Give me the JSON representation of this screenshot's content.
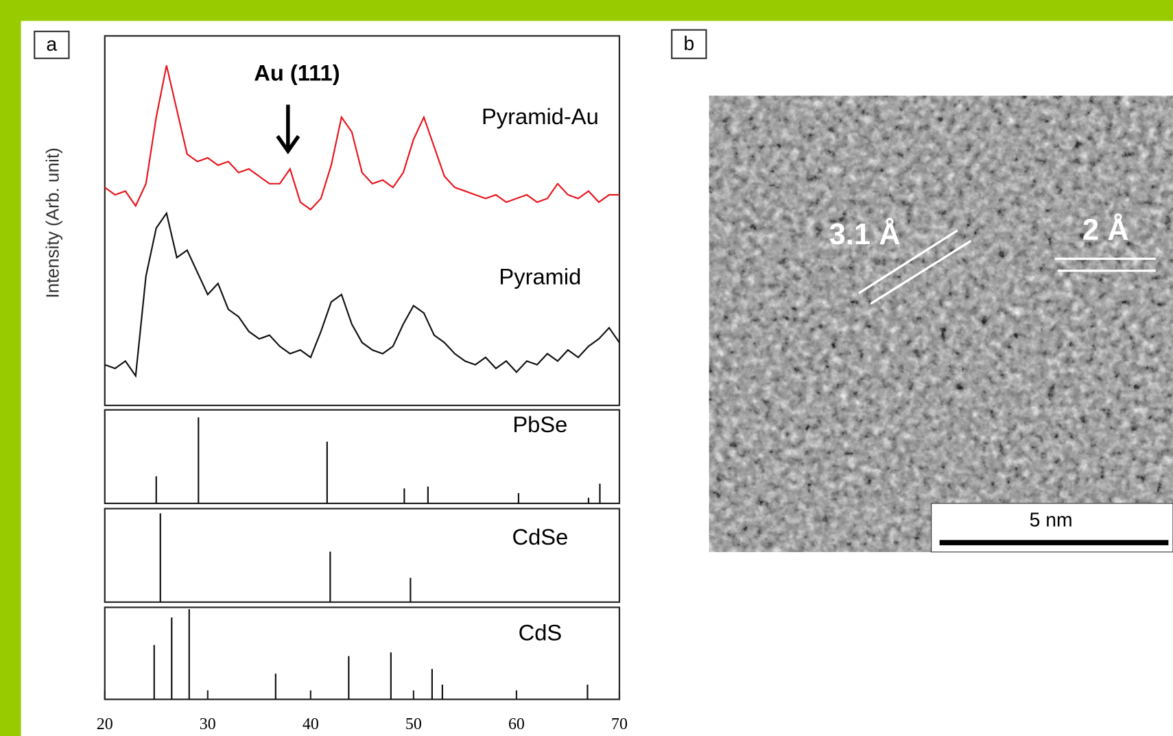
{
  "chart_data": [
    {
      "type": "line",
      "panel_label": "a",
      "ylabel": "Intensity (Arb. unit)",
      "annotation": {
        "text": "Au (111)",
        "x": 37.8
      },
      "x": [
        20,
        21,
        22,
        23,
        24,
        25,
        26,
        27,
        28,
        29,
        30,
        31,
        32,
        33,
        34,
        35,
        36,
        37,
        38,
        39,
        40,
        41,
        42,
        43,
        44,
        45,
        46,
        47,
        48,
        49,
        50,
        51,
        52,
        53,
        54,
        55,
        56,
        57,
        58,
        59,
        60,
        61,
        62,
        63,
        64,
        65,
        66,
        67,
        68,
        69,
        70
      ],
      "xlim": [
        20,
        70
      ],
      "ylim": [
        0,
        100
      ],
      "series": [
        {
          "name": "Pyramid-Au",
          "color": "#e8141c",
          "values": [
            59,
            57,
            58,
            54,
            60,
            78,
            92,
            80,
            68,
            66,
            67,
            65,
            66,
            63,
            64,
            62,
            60,
            60,
            64,
            55,
            53,
            56,
            65,
            78,
            74,
            63,
            60,
            61,
            59,
            63,
            72,
            78,
            70,
            62,
            59,
            58,
            57,
            56,
            57,
            55,
            56,
            57,
            55,
            56,
            60,
            57,
            56,
            58,
            55,
            57,
            57
          ]
        },
        {
          "name": "Pyramid",
          "color": "#111111",
          "values": [
            11,
            10,
            12,
            8,
            35,
            48,
            52,
            40,
            42,
            36,
            30,
            33,
            26,
            24,
            20,
            18,
            19,
            16,
            14,
            15,
            13,
            20,
            28,
            30,
            22,
            17,
            15,
            14,
            16,
            22,
            27,
            25,
            19,
            17,
            14,
            12,
            11,
            13,
            10,
            12,
            9,
            12,
            11,
            14,
            12,
            15,
            13,
            16,
            18,
            21,
            17
          ]
        }
      ]
    },
    {
      "type": "stem",
      "title": "PbSe",
      "color": "#111111",
      "xlim": [
        20,
        70
      ],
      "ylim": [
        0,
        100
      ],
      "x": [
        25,
        29.1,
        41.6,
        49.1,
        51.4,
        60.2,
        67,
        68.1
      ],
      "values": [
        29,
        92,
        66,
        16,
        18,
        11,
        6,
        21
      ]
    },
    {
      "type": "stem",
      "title": "CdSe",
      "color": "#111111",
      "xlim": [
        20,
        70
      ],
      "ylim": [
        0,
        100
      ],
      "x": [
        25.4,
        41.9,
        49.7
      ],
      "values": [
        95,
        54,
        26
      ]
    },
    {
      "type": "stem",
      "title": "CdS",
      "color": "#111111",
      "xlim": [
        20,
        70
      ],
      "ylim": [
        0,
        100
      ],
      "x": [
        24.8,
        26.5,
        28.2,
        36.6,
        43.7,
        47.8,
        51.8,
        52.8,
        66.9
      ],
      "values": [
        59,
        89,
        98,
        28,
        47,
        51,
        33,
        16,
        16
      ],
      "xticks": [
        20,
        30,
        40,
        50,
        60,
        70
      ]
    }
  ],
  "panel_b": {
    "label": "b",
    "spacing_labels": [
      "3.1 Å",
      "2 Å"
    ],
    "scale_bar": "5 nm"
  }
}
